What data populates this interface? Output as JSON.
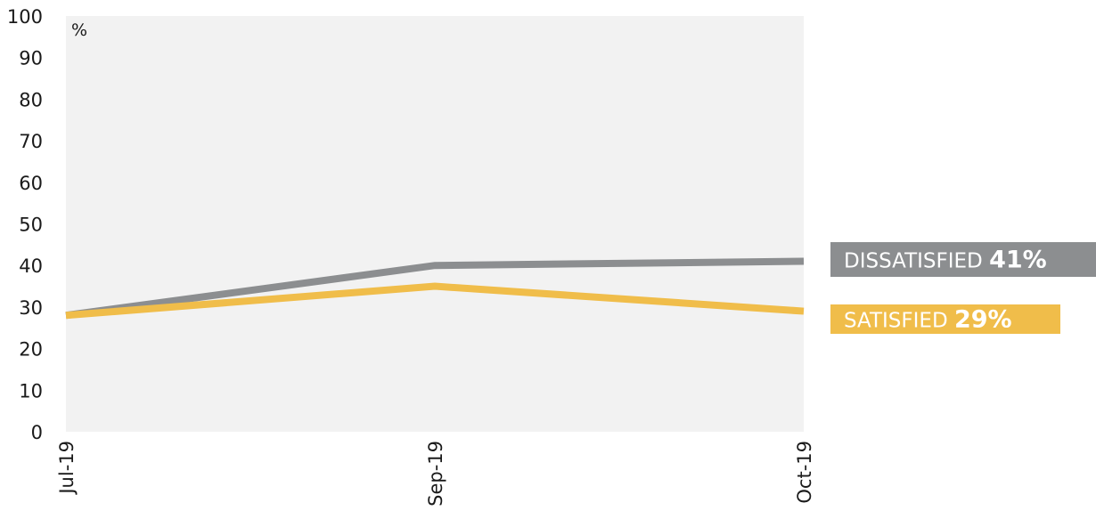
{
  "chart_data": {
    "type": "line",
    "unit_label": "%",
    "x": [
      "Jul-19",
      "Sep-19",
      "Oct-19"
    ],
    "ylim": [
      0,
      100
    ],
    "yticks": [
      0,
      10,
      20,
      30,
      40,
      50,
      60,
      70,
      80,
      90,
      100
    ],
    "grid": false,
    "plot_background": "#f2f2f2",
    "legend_position": "right",
    "series": [
      {
        "key": "dissatisfied",
        "name": "DISSATISFIED",
        "label_value": "41%",
        "values": [
          28,
          40,
          41
        ],
        "color": "#8c8e90"
      },
      {
        "key": "satisfied",
        "name": "SATISFIED",
        "label_value": "29%",
        "values": [
          28,
          35,
          29
        ],
        "color": "#f0bd4a"
      }
    ]
  }
}
